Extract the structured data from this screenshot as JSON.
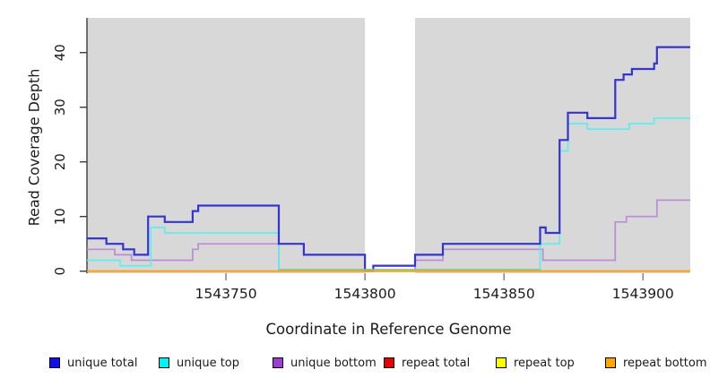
{
  "chart_data": {
    "type": "line",
    "subtype": "step-coverage",
    "title": "",
    "xlabel": "Coordinate in Reference Genome",
    "ylabel": "Read Coverage Depth",
    "xlim": [
      1543700,
      1543917
    ],
    "ylim": [
      0,
      46
    ],
    "x_ticks": [
      1543750,
      1543800,
      1543850,
      1543900
    ],
    "y_ticks": [
      0,
      10,
      20,
      30,
      40
    ],
    "grid": false,
    "plot_bg_color": "#D8D8D8",
    "masked_region": {
      "x_start": 1543800,
      "x_end": 1543818,
      "color": "#FFFFFF"
    },
    "axis_color": "#3C3C3C",
    "x_tick_color": "#8A8A8A",
    "series": [
      {
        "name": "repeat total",
        "color": "#E01010",
        "width": 1.6,
        "points": [
          [
            1543700,
            0
          ]
        ]
      },
      {
        "name": "repeat top",
        "color": "#F7F70F",
        "width": 1.6,
        "points": [
          [
            1543700,
            0
          ]
        ]
      },
      {
        "name": "unique bottom",
        "color": "#BB8BD8",
        "width": 1.7,
        "points": [
          [
            1543700,
            4
          ],
          [
            1543710,
            3
          ],
          [
            1543716,
            2
          ],
          [
            1543738,
            4
          ],
          [
            1543740,
            5
          ],
          [
            1543769,
            0
          ],
          [
            1543818,
            2
          ],
          [
            1543828,
            4
          ],
          [
            1543864,
            2
          ],
          [
            1543890,
            9
          ],
          [
            1543894,
            10
          ],
          [
            1543905,
            13
          ]
        ]
      },
      {
        "name": "unique top",
        "color": "#5FEDED",
        "width": 1.7,
        "points": [
          [
            1543700,
            2
          ],
          [
            1543712,
            1
          ],
          [
            1543723,
            8
          ],
          [
            1543728,
            7
          ],
          [
            1543769,
            0
          ],
          [
            1543863,
            5
          ],
          [
            1543870,
            22
          ],
          [
            1543873,
            27
          ],
          [
            1543880,
            26
          ],
          [
            1543895,
            27
          ],
          [
            1543904,
            28
          ]
        ]
      },
      {
        "name": "unique total",
        "color": "#3434CE",
        "width": 2.2,
        "points": [
          [
            1543700,
            6
          ],
          [
            1543707,
            5
          ],
          [
            1543713,
            4
          ],
          [
            1543717,
            3
          ],
          [
            1543722,
            10
          ],
          [
            1543728,
            9
          ],
          [
            1543738,
            11
          ],
          [
            1543740,
            12
          ],
          [
            1543769,
            5
          ],
          [
            1543778,
            3
          ],
          [
            1543800,
            0
          ],
          [
            1543803,
            1
          ],
          [
            1543818,
            3
          ],
          [
            1543828,
            5
          ],
          [
            1543863,
            8
          ],
          [
            1543865,
            7
          ],
          [
            1543870,
            24
          ],
          [
            1543873,
            29
          ],
          [
            1543880,
            28
          ],
          [
            1543890,
            35
          ],
          [
            1543893,
            36
          ],
          [
            1543896,
            37
          ],
          [
            1543904,
            38
          ],
          [
            1543905,
            41
          ]
        ]
      },
      {
        "name": "repeat bottom",
        "color": "#FFA11E",
        "width": 2,
        "points": [
          [
            1543700,
            0
          ]
        ]
      }
    ],
    "zero_overlay": {
      "comment": "pale green blended line where unique top hugs zero",
      "x_start": 1543769,
      "x_end": 1543863,
      "color": "#7CCB8E",
      "width": 1.5
    },
    "legend": [
      {
        "label": "unique total",
        "color": "#1010E8"
      },
      {
        "label": "unique top",
        "color": "#00F2F2"
      },
      {
        "label": "unique bottom",
        "color": "#A03BD6"
      },
      {
        "label": "repeat total",
        "color": "#E60000"
      },
      {
        "label": "repeat top",
        "color": "#FFFF00"
      },
      {
        "label": "repeat bottom",
        "color": "#FFA500"
      }
    ],
    "legend_position": "bottom"
  }
}
